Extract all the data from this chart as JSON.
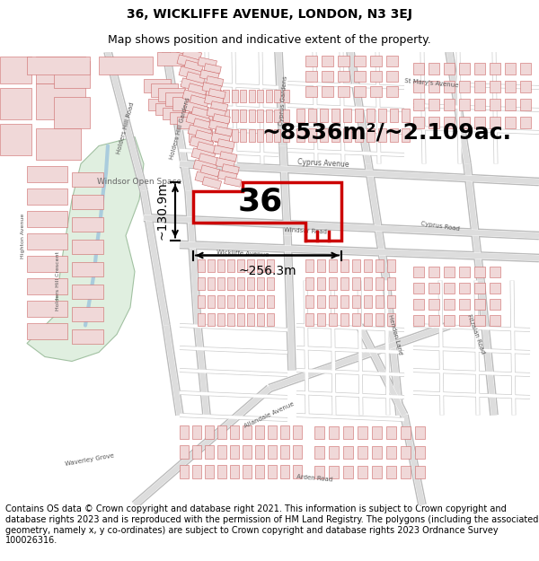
{
  "title_line1": "36, WICKLIFFE AVENUE, LONDON, N3 3EJ",
  "title_line2": "Map shows position and indicative extent of the property.",
  "area_text": "~8536m²/~2.109ac.",
  "property_number": "36",
  "dim_width": "~256.3m",
  "dim_height": "~130.9m",
  "footer_text": "Contains OS data © Crown copyright and database right 2021. This information is subject to Crown copyright and database rights 2023 and is reproduced with the permission of HM Land Registry. The polygons (including the associated geometry, namely x, y co-ordinates) are subject to Crown copyright and database rights 2023 Ordnance Survey 100026316.",
  "map_bg": "#f5f3f0",
  "road_fill": "#ffffff",
  "road_edge": "#e8a0a0",
  "building_fill": "#f0d8d8",
  "building_edge": "#cc6666",
  "open_space_fill": "#ddeedd",
  "open_space_edge": "#99bb99",
  "property_edge": "#cc0000",
  "property_fill": "none",
  "title_fontsize": 10,
  "subtitle_fontsize": 9,
  "footer_fontsize": 7,
  "label_color": "#555555",
  "road_label_color": "#555555"
}
